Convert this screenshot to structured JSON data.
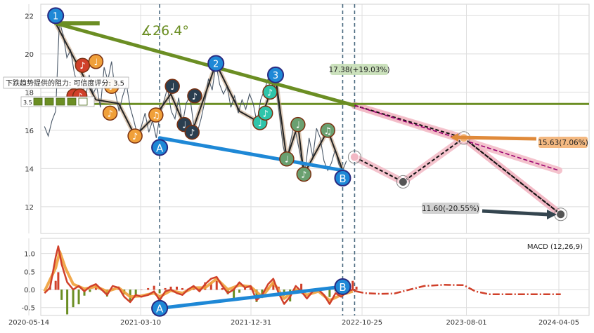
{
  "chart_data": [
    {
      "type": "line",
      "panel": "price",
      "ylim": [
        10.6,
        22.6
      ],
      "yticks": [
        12,
        14,
        16,
        18,
        20,
        22
      ],
      "grid": true,
      "price_series": [
        [
          "2020-06-25",
          16.2
        ],
        [
          "2020-07-05",
          15.7
        ],
        [
          "2020-07-15",
          16.5
        ],
        [
          "2020-07-25",
          17.0
        ],
        [
          "2020-08-04",
          21.7
        ],
        [
          "2020-08-14",
          21.0
        ],
        [
          "2020-08-24",
          19.8
        ],
        [
          "2020-09-03",
          20.2
        ],
        [
          "2020-09-13",
          19.0
        ],
        [
          "2020-09-23",
          18.3
        ],
        [
          "2020-10-03",
          18.8
        ],
        [
          "2020-10-13",
          17.6
        ],
        [
          "2020-10-23",
          18.9
        ],
        [
          "2020-11-02",
          17.9
        ],
        [
          "2020-11-12",
          18.3
        ],
        [
          "2020-11-22",
          17.2
        ],
        [
          "2020-12-02",
          19.3
        ],
        [
          "2020-12-12",
          18.6
        ],
        [
          "2020-12-22",
          19.6
        ],
        [
          "2021-01-01",
          18.0
        ],
        [
          "2021-01-11",
          17.0
        ],
        [
          "2021-01-21",
          17.8
        ],
        [
          "2021-01-31",
          18.4
        ],
        [
          "2021-02-10",
          17.2
        ],
        [
          "2021-02-20",
          16.5
        ],
        [
          "2021-03-02",
          15.7
        ],
        [
          "2021-03-12",
          16.2
        ],
        [
          "2021-03-22",
          16.9
        ],
        [
          "2021-04-01",
          15.9
        ],
        [
          "2021-04-11",
          16.5
        ],
        [
          "2021-04-21",
          15.6
        ],
        [
          "2021-05-01",
          16.8
        ],
        [
          "2021-05-11",
          17.5
        ],
        [
          "2021-05-21",
          18.2
        ],
        [
          "2021-05-31",
          17.0
        ],
        [
          "2021-06-10",
          16.6
        ],
        [
          "2021-06-20",
          17.7
        ],
        [
          "2021-06-30",
          16.3
        ],
        [
          "2021-07-10",
          17.4
        ],
        [
          "2021-07-20",
          17.8
        ],
        [
          "2021-07-30",
          16.3
        ],
        [
          "2021-08-09",
          15.9
        ],
        [
          "2021-08-19",
          16.6
        ],
        [
          "2021-08-29",
          17.5
        ],
        [
          "2021-09-08",
          18.7
        ],
        [
          "2021-09-18",
          18.1
        ],
        [
          "2021-09-28",
          19.5
        ],
        [
          "2021-10-08",
          18.4
        ],
        [
          "2021-10-18",
          17.9
        ],
        [
          "2021-10-28",
          18.3
        ],
        [
          "2021-11-07",
          17.2
        ],
        [
          "2021-11-17",
          17.8
        ],
        [
          "2021-11-27",
          16.9
        ],
        [
          "2021-12-07",
          17.6
        ],
        [
          "2021-12-17",
          17.1
        ],
        [
          "2021-12-27",
          17.9
        ],
        [
          "2022-01-06",
          17.4
        ],
        [
          "2022-01-16",
          16.4
        ],
        [
          "2022-01-26",
          17.6
        ],
        [
          "2022-02-05",
          18.1
        ],
        [
          "2022-02-15",
          18.7
        ],
        [
          "2022-02-25",
          17.8
        ],
        [
          "2022-03-07",
          18.5
        ],
        [
          "2022-03-17",
          16.9
        ],
        [
          "2022-03-27",
          15.2
        ],
        [
          "2022-04-06",
          14.4
        ],
        [
          "2022-04-16",
          15.4
        ],
        [
          "2022-04-26",
          16.3
        ],
        [
          "2022-05-06",
          15.3
        ],
        [
          "2022-05-16",
          14.4
        ],
        [
          "2022-05-26",
          14.0
        ],
        [
          "2022-06-05",
          15.6
        ],
        [
          "2022-06-15",
          14.6
        ],
        [
          "2022-06-25",
          16.1
        ],
        [
          "2022-07-05",
          15.6
        ],
        [
          "2022-07-15",
          14.4
        ],
        [
          "2022-07-25",
          13.9
        ],
        [
          "2022-08-04",
          14.3
        ],
        [
          "2022-08-14",
          15.0
        ],
        [
          "2022-08-24",
          14.2
        ],
        [
          "2022-09-03",
          13.9
        ],
        [
          "2022-09-13",
          14.4
        ]
      ],
      "resistance_line": {
        "from": [
          "2020-07-25",
          21.6
        ],
        "to": [
          "2022-10-05",
          17.3
        ]
      },
      "resistance_ext": {
        "from": [
          "2022-10-05",
          17.3
        ],
        "to": [
          "2024-04-05",
          13.9
        ]
      },
      "support_line": {
        "from": [
          "2021-04-30",
          15.6
        ],
        "to": [
          "2022-09-03",
          13.9
        ]
      },
      "horizontal_level": 17.38,
      "dotted_paths": [
        [
          [
            "2022-10-05",
            14.6
          ],
          [
            "2023-02-12",
            13.3
          ],
          [
            "2023-07-25",
            15.6
          ],
          [
            "2024-04-10",
            11.6
          ]
        ],
        [
          [
            "2022-10-05",
            17.3
          ],
          [
            "2023-07-25",
            15.6
          ],
          [
            "2024-04-10",
            11.6
          ]
        ]
      ],
      "angle_marker": {
        "from": [
          "2020-07-25",
          21.6
        ],
        "to": [
          "2020-11-20",
          21.6
        ]
      },
      "vertical_markers": [
        "2021-04-30",
        "2022-09-03",
        "2022-10-05"
      ],
      "numbered_markers": [
        {
          "label": "1",
          "x": "2020-07-25",
          "y": 22.0
        },
        {
          "label": "2",
          "x": "2021-09-28",
          "y": 19.5
        },
        {
          "label": "3",
          "x": "2022-03-07",
          "y": 18.9
        }
      ],
      "wave_markers": [
        {
          "label": "A",
          "x": "2021-04-30",
          "y": 15.1,
          "color": "#1e88d6"
        },
        {
          "label": "B",
          "x": "2022-09-03",
          "y": 13.5,
          "color": "#1e88d6"
        }
      ],
      "note_markers": [
        {
          "x": "2020-09-12",
          "y": 17.8,
          "c": "#d0402a",
          "g": "♩"
        },
        {
          "x": "2020-09-28",
          "y": 17.8,
          "c": "#d0402a",
          "g": "♪"
        },
        {
          "x": "2020-10-05",
          "y": 19.4,
          "c": "#d0402a",
          "g": "♪"
        },
        {
          "x": "2020-11-10",
          "y": 19.6,
          "c": "#f0a03a",
          "g": "♩"
        },
        {
          "x": "2020-12-18",
          "y": 16.9,
          "c": "#f0a03a",
          "g": "♪"
        },
        {
          "x": "2020-12-22",
          "y": 18.3,
          "c": "#f0a03a",
          "g": "♪"
        },
        {
          "x": "2021-02-23",
          "y": 15.7,
          "c": "#f0a03a",
          "g": "♪"
        },
        {
          "x": "2021-04-20",
          "y": 16.8,
          "c": "#f0a03a",
          "g": "♫"
        },
        {
          "x": "2021-06-03",
          "y": 18.3,
          "c": "#2a3e4f",
          "g": "♩"
        },
        {
          "x": "2021-07-05",
          "y": 16.3,
          "c": "#2a3e4f",
          "g": "♩"
        },
        {
          "x": "2021-07-26",
          "y": 15.9,
          "c": "#2a3e4f",
          "g": "♪"
        },
        {
          "x": "2021-08-02",
          "y": 17.8,
          "c": "#2a3e4f",
          "g": "♪"
        },
        {
          "x": "2022-01-24",
          "y": 16.4,
          "c": "#2fc4aa",
          "g": "♩"
        },
        {
          "x": "2022-02-08",
          "y": 16.9,
          "c": "#2fc4aa",
          "g": "♪"
        },
        {
          "x": "2022-02-20",
          "y": 18.0,
          "c": "#2fc4aa",
          "g": "♪"
        },
        {
          "x": "2022-04-06",
          "y": 14.5,
          "c": "#6aa070",
          "g": "♩"
        },
        {
          "x": "2022-05-06",
          "y": 16.3,
          "c": "#6aa070",
          "g": "♩"
        },
        {
          "x": "2022-05-22",
          "y": 13.7,
          "c": "#6aa070",
          "g": "♪"
        },
        {
          "x": "2022-07-25",
          "y": 16.0,
          "c": "#6aa070",
          "g": "♫"
        }
      ],
      "target_points": [
        {
          "x": "2022-10-05",
          "y": 14.6
        },
        {
          "x": "2023-02-12",
          "y": 13.3
        },
        {
          "x": "2023-07-25",
          "y": 15.6
        },
        {
          "x": "2024-04-10",
          "y": 11.6
        }
      ],
      "annotations": {
        "angle_label": "∡26.4°",
        "upper_target": "17.38(+19.03%)",
        "mid_target": "15.63(7.06%)",
        "low_target": "11.60(-20.55%)",
        "resistance_note": "下跌趋势提供的阻力: 可信度评分: 3.5",
        "rating_value": "3.5",
        "rating_stars": 4
      }
    },
    {
      "type": "line",
      "panel": "macd",
      "title": "MACD (12,26,9)",
      "ylim": [
        -0.72,
        1.42
      ],
      "yticks": [
        -0.5,
        0.0,
        0.5,
        1.0
      ],
      "xticks": [
        "2020-05-14",
        "2021-03-10",
        "2021-12-31",
        "2022-10-25",
        "2023-08-01",
        "2024-04-05"
      ],
      "macd_series": [
        [
          "2020-06-25",
          -0.1
        ],
        [
          "2020-07-10",
          0.05
        ],
        [
          "2020-07-25",
          0.9
        ],
        [
          "2020-08-01",
          1.2
        ],
        [
          "2020-08-10",
          0.7
        ],
        [
          "2020-08-25",
          0.2
        ],
        [
          "2020-09-10",
          0.0
        ],
        [
          "2020-09-25",
          0.1
        ],
        [
          "2020-10-10",
          -0.05
        ],
        [
          "2020-10-25",
          0.08
        ],
        [
          "2020-11-10",
          0.15
        ],
        [
          "2020-11-25",
          0.0
        ],
        [
          "2020-12-10",
          -0.15
        ],
        [
          "2020-12-25",
          0.1
        ],
        [
          "2021-01-10",
          0.05
        ],
        [
          "2021-01-25",
          -0.2
        ],
        [
          "2021-02-10",
          -0.35
        ],
        [
          "2021-02-25",
          -0.15
        ],
        [
          "2021-03-12",
          -0.2
        ],
        [
          "2021-03-30",
          -0.15
        ],
        [
          "2021-04-15",
          -0.05
        ],
        [
          "2021-04-30",
          -0.3
        ],
        [
          "2021-05-15",
          -0.05
        ],
        [
          "2021-05-30",
          0.0
        ],
        [
          "2021-06-15",
          -0.1
        ],
        [
          "2021-06-30",
          -0.15
        ],
        [
          "2021-07-15",
          0.0
        ],
        [
          "2021-07-30",
          0.1
        ],
        [
          "2021-08-15",
          -0.05
        ],
        [
          "2021-08-30",
          0.15
        ],
        [
          "2021-09-15",
          0.3
        ],
        [
          "2021-09-30",
          0.35
        ],
        [
          "2021-10-15",
          0.1
        ],
        [
          "2021-10-30",
          -0.1
        ],
        [
          "2021-11-15",
          0.0
        ],
        [
          "2021-11-30",
          0.2
        ],
        [
          "2021-12-15",
          0.05
        ],
        [
          "2021-12-30",
          0.1
        ],
        [
          "2022-01-15",
          -0.3
        ],
        [
          "2022-01-30",
          -0.15
        ],
        [
          "2022-02-15",
          0.15
        ],
        [
          "2022-03-01",
          0.3
        ],
        [
          "2022-03-15",
          -0.1
        ],
        [
          "2022-03-30",
          -0.4
        ],
        [
          "2022-04-15",
          -0.2
        ],
        [
          "2022-04-30",
          0.1
        ],
        [
          "2022-05-15",
          -0.05
        ],
        [
          "2022-05-30",
          -0.25
        ],
        [
          "2022-06-15",
          -0.05
        ],
        [
          "2022-06-30",
          0.0
        ],
        [
          "2022-07-15",
          -0.15
        ],
        [
          "2022-07-30",
          -0.4
        ],
        [
          "2022-08-15",
          -0.1
        ],
        [
          "2022-08-30",
          -0.2
        ],
        [
          "2022-09-15",
          -0.05
        ],
        [
          "2022-09-30",
          0.0
        ],
        [
          "2022-10-10",
          -0.05
        ]
      ],
      "signal_series": [
        [
          "2020-06-25",
          -0.05
        ],
        [
          "2020-07-25",
          0.6
        ],
        [
          "2020-08-05",
          1.05
        ],
        [
          "2020-08-20",
          0.6
        ],
        [
          "2020-09-10",
          0.15
        ],
        [
          "2020-10-10",
          0.02
        ],
        [
          "2020-11-10",
          0.08
        ],
        [
          "2020-12-10",
          -0.05
        ],
        [
          "2021-01-10",
          0.05
        ],
        [
          "2021-02-10",
          -0.2
        ],
        [
          "2021-03-10",
          -0.18
        ],
        [
          "2021-04-15",
          -0.1
        ],
        [
          "2021-04-30",
          -0.2
        ],
        [
          "2021-05-30",
          -0.03
        ],
        [
          "2021-06-30",
          -0.1
        ],
        [
          "2021-07-30",
          0.05
        ],
        [
          "2021-08-30",
          0.05
        ],
        [
          "2021-09-30",
          0.3
        ],
        [
          "2021-10-30",
          0.0
        ],
        [
          "2021-11-30",
          0.12
        ],
        [
          "2021-12-30",
          0.08
        ],
        [
          "2022-01-30",
          -0.2
        ],
        [
          "2022-03-01",
          0.2
        ],
        [
          "2022-03-30",
          -0.25
        ],
        [
          "2022-04-30",
          0.0
        ],
        [
          "2022-05-30",
          -0.15
        ],
        [
          "2022-06-30",
          -0.05
        ],
        [
          "2022-07-30",
          -0.3
        ],
        [
          "2022-08-30",
          -0.15
        ],
        [
          "2022-09-30",
          -0.05
        ]
      ],
      "forecast_series": [
        [
          "2022-10-10",
          -0.05
        ],
        [
          "2022-11-01",
          -0.1
        ],
        [
          "2022-12-15",
          -0.12
        ],
        [
          "2023-01-20",
          -0.11
        ],
        [
          "2023-03-10",
          0.02
        ],
        [
          "2023-04-10",
          0.1
        ],
        [
          "2023-06-01",
          0.13
        ],
        [
          "2023-07-25",
          0.12
        ],
        [
          "2023-08-25",
          -0.05
        ],
        [
          "2023-10-01",
          -0.13
        ],
        [
          "2024-01-01",
          -0.13
        ],
        [
          "2024-04-10",
          -0.13
        ]
      ],
      "wave_line": {
        "from": [
          "2021-04-30",
          -0.52
        ],
        "to": [
          "2022-09-03",
          0.08
        ]
      },
      "wave_markers": [
        {
          "label": "A",
          "x": "2021-04-30",
          "y": -0.52
        },
        {
          "label": "B",
          "x": "2022-09-03",
          "y": 0.08
        }
      ],
      "vertical_markers": [
        "2021-04-30",
        "2022-09-03",
        "2022-10-05"
      ]
    }
  ],
  "colors": {
    "price": "#4a5868",
    "resistance": "#6b8e23",
    "support": "#1e88d6",
    "forecast_fill": "#f2b8c4",
    "dotted": "#111111",
    "ext_dotted": "#9b0070",
    "macd_main": "#d0402a",
    "macd_signal": "#f0a03a",
    "hist_pos": "#d0402a",
    "hist_neg": "#6b8e23",
    "vline": "#4a6a80",
    "grid": "#dedede",
    "label_green_bg": "#c8dfb8",
    "label_orange_bg": "#f3b57a",
    "label_gray_bg": "#d0d0d0"
  }
}
